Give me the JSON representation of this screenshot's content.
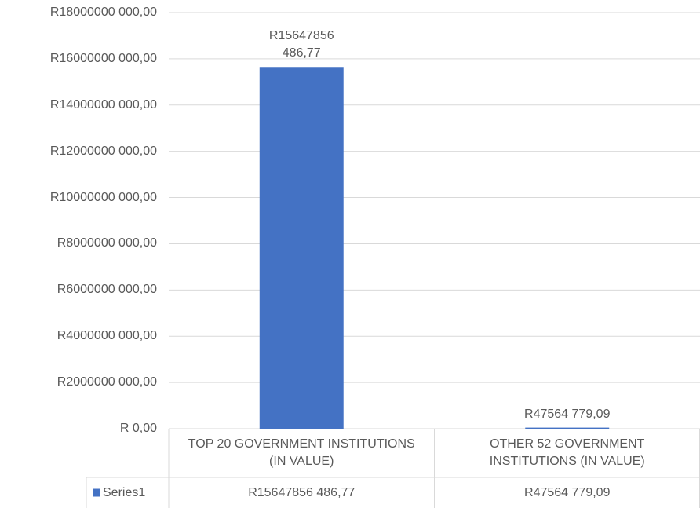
{
  "chart_data": {
    "type": "bar",
    "categories": [
      "TOP 20 GOVERNMENT INSTITUTIONS (IN VALUE)",
      "OTHER 52 GOVERNMENT INSTITUTIONS (IN VALUE)"
    ],
    "series": [
      {
        "name": "Series1",
        "color": "#4472c4",
        "values": [
          15647856486.77,
          47564779.09
        ],
        "value_labels": [
          "R15647856 486,77",
          "R47564 779,09"
        ]
      }
    ],
    "ylim": [
      0,
      18000000000
    ],
    "yticks": [
      {
        "value": 0,
        "label": "R 0,00"
      },
      {
        "value": 2000000000,
        "label": "R2000000 000,00"
      },
      {
        "value": 4000000000,
        "label": "R4000000 000,00"
      },
      {
        "value": 6000000000,
        "label": "R6000000 000,00"
      },
      {
        "value": 8000000000,
        "label": "R8000000 000,00"
      },
      {
        "value": 10000000000,
        "label": "R10000000 000,00"
      },
      {
        "value": 12000000000,
        "label": "R12000000 000,00"
      },
      {
        "value": 14000000000,
        "label": "R14000000 000,00"
      },
      {
        "value": 16000000000,
        "label": "R16000000 000,00"
      },
      {
        "value": 18000000000,
        "label": "R18000000 000,00"
      }
    ],
    "grid": true,
    "data_table": true
  }
}
